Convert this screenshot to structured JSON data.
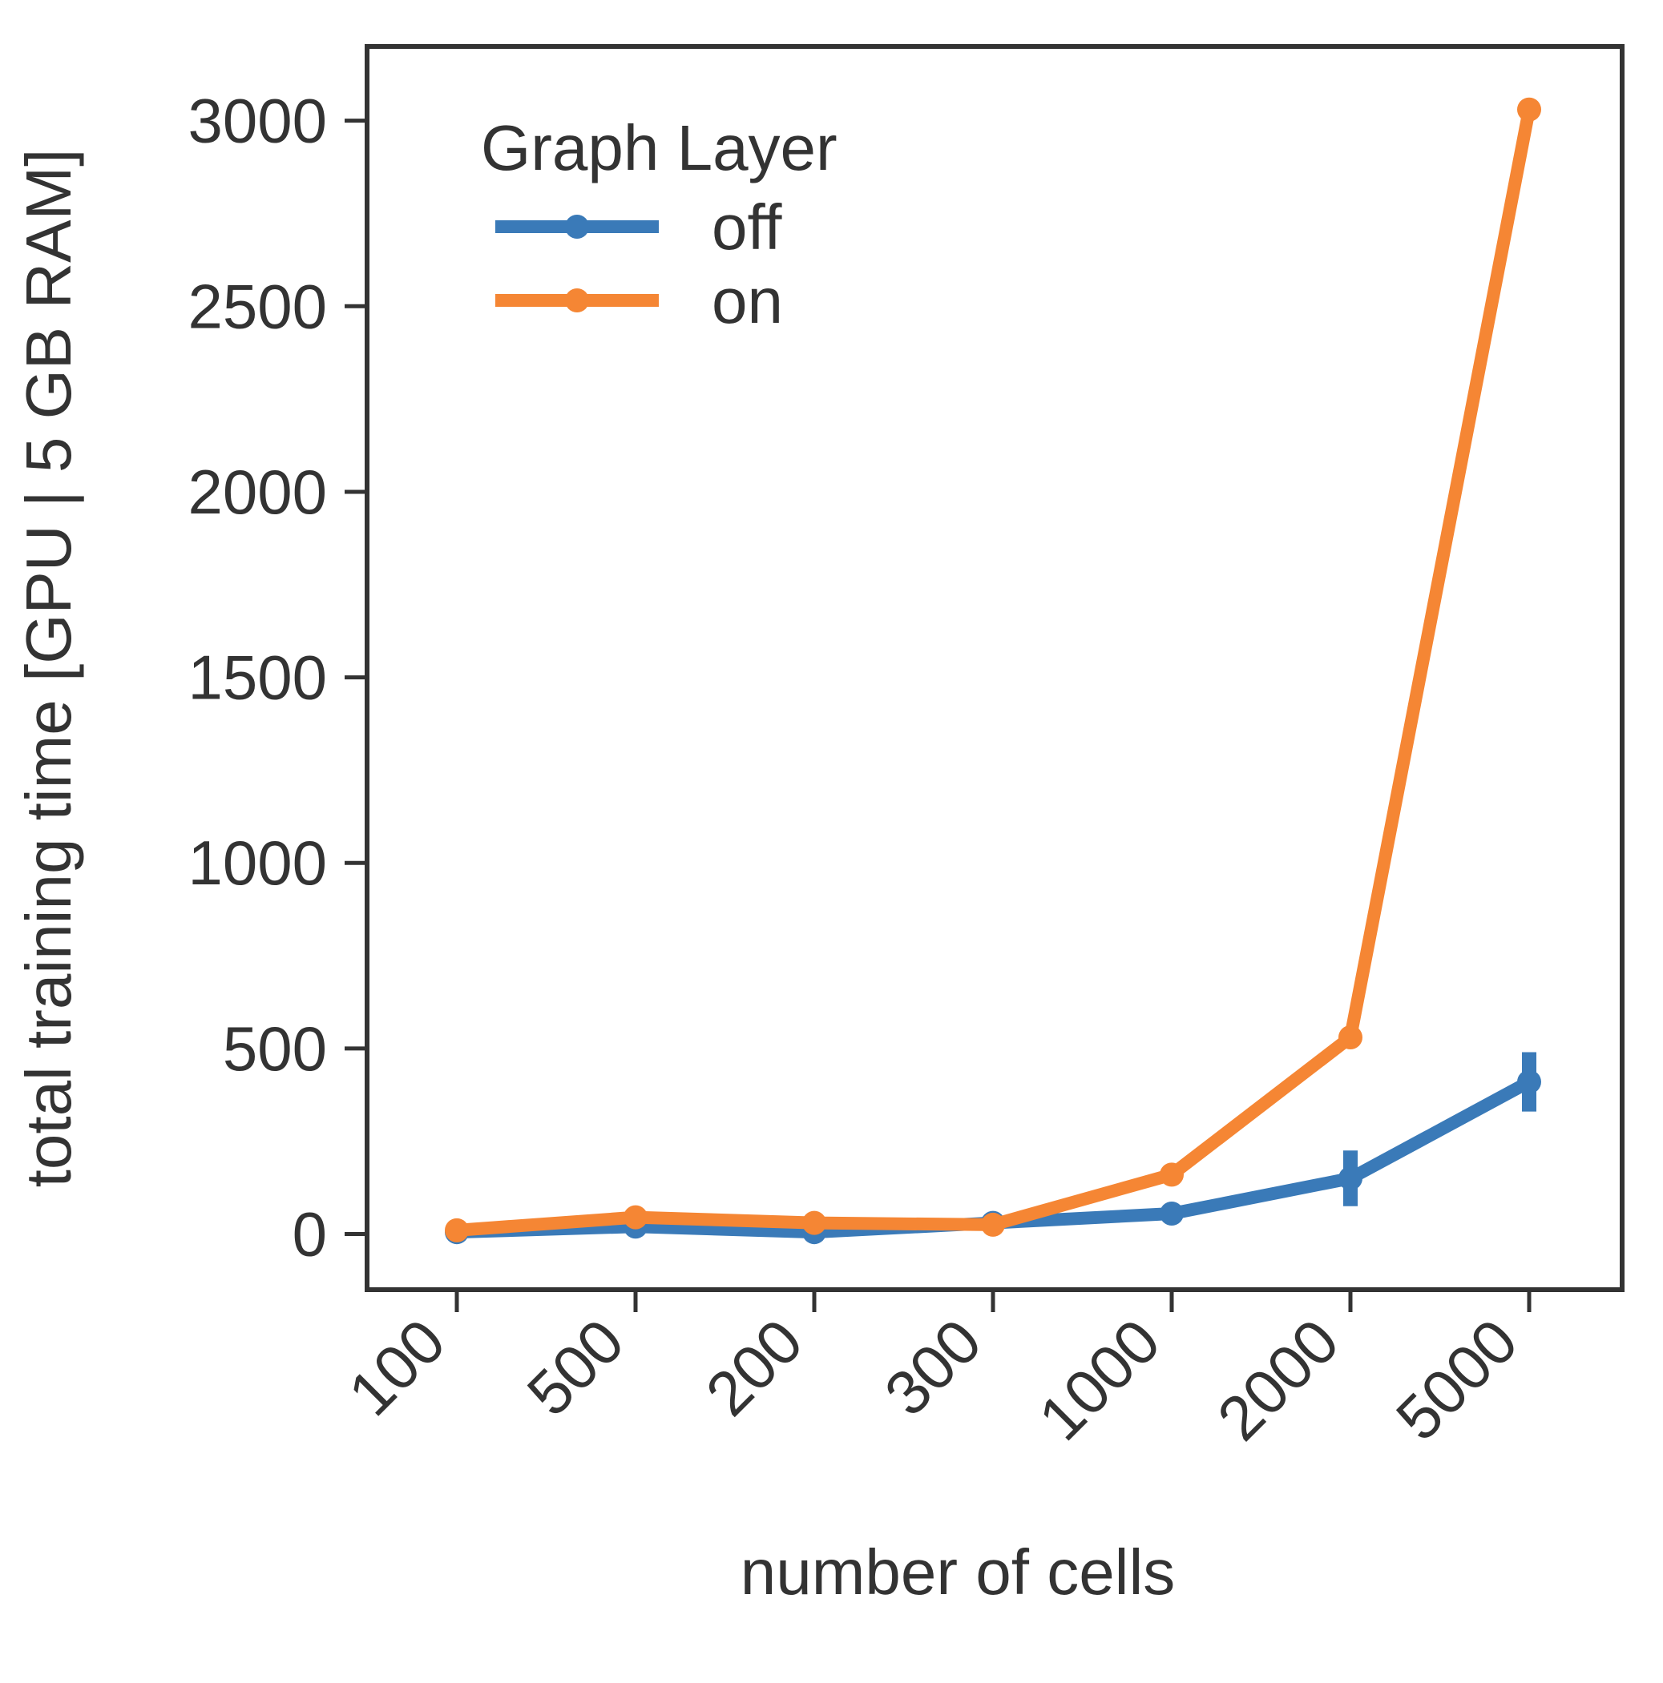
{
  "chart_data": {
    "type": "line",
    "xlabel": "number of cells",
    "ylabel": "total training time [GPU | 5 GB RAM]",
    "categories": [
      "100",
      "500",
      "200",
      "300",
      "1000",
      "2000",
      "5000"
    ],
    "ylim": [
      -150,
      3200
    ],
    "yticks": [
      0,
      500,
      1000,
      1500,
      2000,
      2500,
      3000
    ],
    "grid": false,
    "legend": {
      "title": "Graph Layer",
      "placement": "top-left"
    },
    "series": [
      {
        "name": "off",
        "color": "#3a7ab8",
        "values": [
          5,
          20,
          5,
          30,
          55,
          150,
          410
        ],
        "errors": [
          5,
          8,
          5,
          10,
          15,
          75,
          80
        ]
      },
      {
        "name": "on",
        "color": "#f58634",
        "values": [
          10,
          45,
          30,
          25,
          160,
          530,
          3030
        ],
        "errors": [
          5,
          10,
          8,
          8,
          20,
          25,
          20
        ]
      }
    ]
  }
}
